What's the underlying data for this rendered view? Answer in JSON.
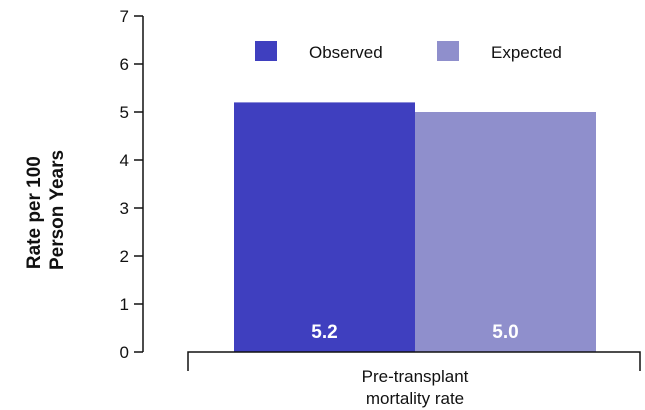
{
  "chart_data": {
    "type": "bar",
    "categories": [
      "Pre-transplant mortality rate"
    ],
    "category_lines": [
      "Pre-transplant",
      "mortality rate"
    ],
    "series": [
      {
        "name": "Observed",
        "values": [
          5.2
        ],
        "label": "5.2",
        "color": "#3f3fbf"
      },
      {
        "name": "Expected",
        "values": [
          5.0
        ],
        "label": "5.0",
        "color": "#8f8fcc"
      }
    ],
    "ylabel_lines": [
      "Rate per 100",
      "Person Years"
    ],
    "xlabel": "",
    "ylim": [
      0,
      7
    ],
    "yticks": [
      "0",
      "1",
      "2",
      "3",
      "4",
      "5",
      "6",
      "7"
    ],
    "grid": false,
    "legend_position": "top"
  }
}
